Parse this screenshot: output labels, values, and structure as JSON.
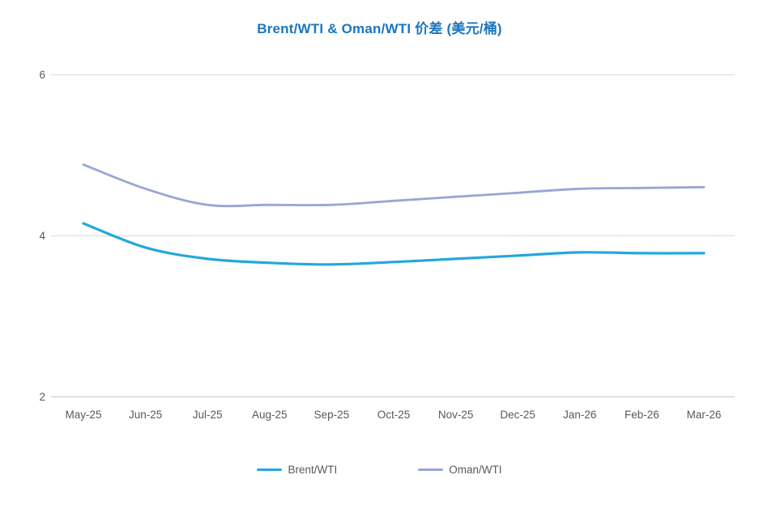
{
  "title": "Brent/WTI & Oman/WTI 价差 (美元/桶)",
  "chart_data": {
    "type": "line",
    "title": "Brent/WTI & Oman/WTI 价差 (美元/桶)",
    "categories": [
      "May-25",
      "Jun-25",
      "Jul-25",
      "Aug-25",
      "Sep-25",
      "Oct-25",
      "Nov-25",
      "Dec-25",
      "Jan-26",
      "Feb-26",
      "Mar-26"
    ],
    "series": [
      {
        "name": "Brent/WTI",
        "color": "#24a7dc",
        "stroke_width": 3.2,
        "values": [
          4.15,
          3.85,
          3.71,
          3.66,
          3.64,
          3.67,
          3.71,
          3.75,
          3.79,
          3.78,
          3.78
        ]
      },
      {
        "name": "Oman/WTI",
        "color": "#98a6d6",
        "stroke_width": 2.8,
        "values": [
          4.88,
          4.58,
          4.38,
          4.38,
          4.38,
          4.43,
          4.48,
          4.53,
          4.58,
          4.59,
          4.6
        ]
      }
    ],
    "xlabel": "",
    "ylabel": "",
    "ylim": [
      2,
      6
    ],
    "y_ticks": [
      2,
      4,
      6
    ],
    "grid": "horizontal",
    "smooth": true,
    "legend_position": "bottom"
  },
  "colors": {
    "title": "#1b76be",
    "axis_text": "#595959",
    "gridline": "#d9d9d9",
    "axis_line": "#c9c9c9",
    "background": "#ffffff"
  }
}
